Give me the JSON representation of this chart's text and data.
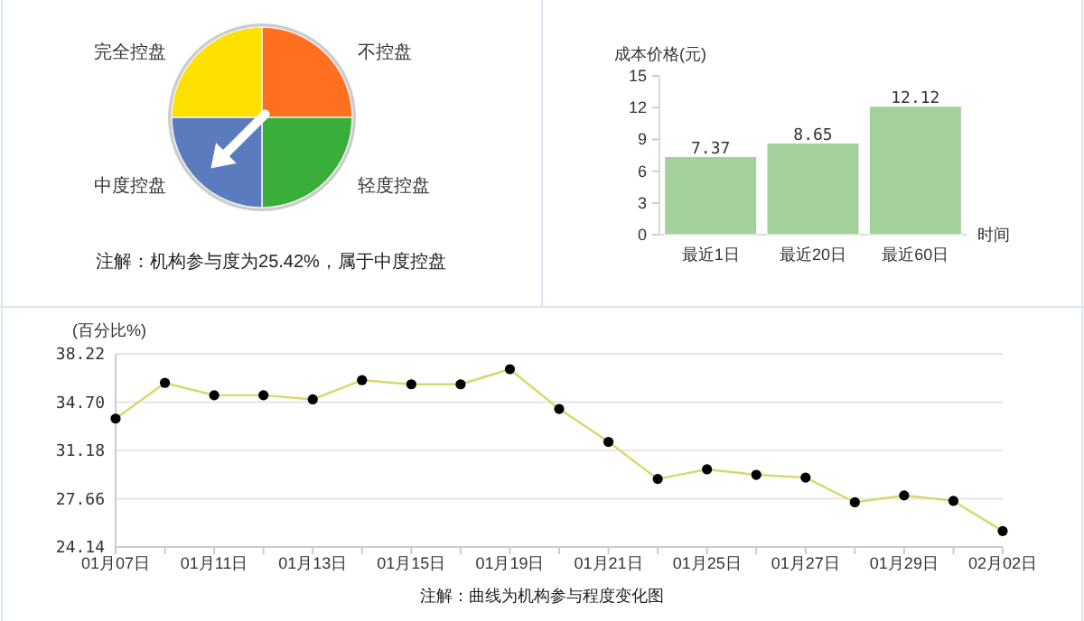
{
  "chart_data": [
    {
      "type": "pie",
      "categories": [
        "不控盘",
        "轻度控盘",
        "中度控盘",
        "完全控盘"
      ],
      "values": [
        25,
        25,
        25,
        25
      ],
      "colors": [
        "#ff6f1f",
        "#3aae3a",
        "#5a7bbd",
        "#ffe100"
      ],
      "needle": "中度控盘",
      "annotations": [
        "注解：机构参与度为25.42%，属于中度控盘"
      ]
    },
    {
      "type": "bar",
      "categories": [
        "最近1日",
        "最近20日",
        "最近60日"
      ],
      "values": [
        7.37,
        8.65,
        12.12
      ],
      "color": "#a3d09b",
      "ylim": [
        0,
        15
      ],
      "yticks": [
        0,
        3,
        6,
        9,
        12,
        15
      ],
      "xlabel": "时间",
      "ylabel": "成本价格(元)",
      "data_labels": true,
      "grid": false
    },
    {
      "type": "line",
      "categories": [
        "01月07日",
        null,
        "01月11日",
        null,
        "01月13日",
        null,
        "01月15日",
        null,
        "01月19日",
        null,
        "01月21日",
        null,
        "01月25日",
        null,
        "01月27日",
        null,
        "01月29日",
        null,
        "02月02日"
      ],
      "series": [
        {
          "color": "#d8d86a",
          "values": [
            33.5,
            36.1,
            35.2,
            35.2,
            34.9,
            36.3,
            36.0,
            36.0,
            37.1,
            34.2,
            31.8,
            29.1,
            29.8,
            29.4,
            29.2,
            27.4,
            27.9,
            27.5,
            25.3
          ]
        }
      ],
      "ylim": [
        24.14,
        38.22
      ],
      "yticks": [
        24.14,
        27.66,
        31.18,
        {
          "value": 34.7,
          "label": "34.70"
        },
        38.22
      ],
      "ylabel": "(百分比%)",
      "grid": "y",
      "marker": "circle",
      "line_style": "solid",
      "annotations": [
        "注解：曲线为机构参与程度变化图"
      ]
    }
  ]
}
